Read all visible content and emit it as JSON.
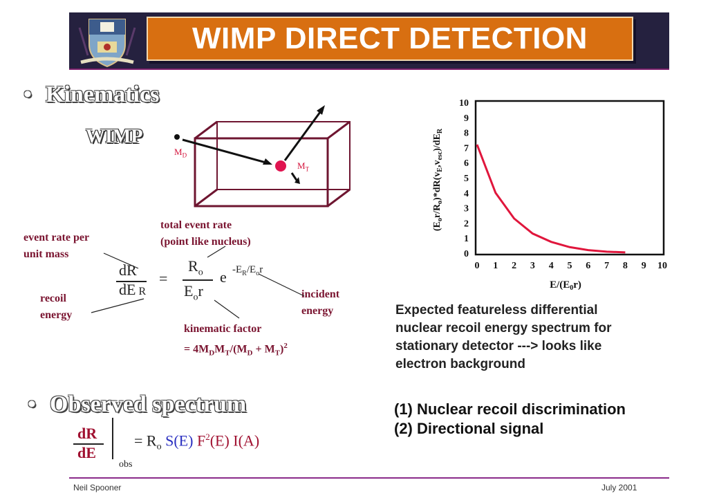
{
  "header": {
    "title": "WIMP DIRECT DETECTION"
  },
  "kinematics": {
    "heading": "Kinematics",
    "wimp_label": "WIMP",
    "md_label": "M",
    "md_sub": "D",
    "mt_label": "M",
    "mt_sub": "T"
  },
  "annotations": {
    "event_rate_1": "event rate per",
    "event_rate_2": "unit mass",
    "total_rate_1": "total event rate",
    "total_rate_2": "(point like nucleus)",
    "recoil_1": "recoil",
    "recoil_2": "energy",
    "incident_1": "incident",
    "incident_2": "energy",
    "kinematic_1": "kinematic factor",
    "kinematic_2": "= 4M",
    "kinematic_d": "D",
    "kinematic_m": "M",
    "kinematic_t": "T",
    "kinematic_3": "/(M",
    "kinematic_d2": "D",
    "kinematic_plus": " + M",
    "kinematic_t2": "T",
    "kinematic_close": ")",
    "kinematic_sq": "2"
  },
  "formula": {
    "dR": "dR",
    "dE": "dE",
    "sub_R": "R",
    "equals": "=",
    "R": "R",
    "o": "o",
    "E": "E",
    "r": "r",
    "e": "e",
    "exp_minus_E": "-E",
    "exp_R": "R",
    "exp_slash_E": "/E",
    "exp_o": "o",
    "exp_r": "r"
  },
  "chart_data": {
    "type": "line",
    "x": [
      0,
      1,
      2,
      3,
      4,
      5,
      6,
      7,
      8
    ],
    "y": [
      7.2,
      4.0,
      2.3,
      1.3,
      0.75,
      0.4,
      0.2,
      0.1,
      0.05
    ],
    "xticks": [
      "0",
      "1",
      "2",
      "3",
      "4",
      "5",
      "6",
      "7",
      "8",
      "9",
      "10"
    ],
    "yticks": [
      "0",
      "1",
      "2",
      "3",
      "4",
      "5",
      "6",
      "7",
      "8",
      "9",
      "10"
    ],
    "xlim": [
      0,
      10
    ],
    "ylim": [
      0,
      10
    ],
    "xlabel": "E/(E₀r)",
    "ylabel": "(Eₒr/Rₒ)*dR(v_E,v_esc)/dE_R",
    "line_color": "#e0163c",
    "grid": false
  },
  "chart_caption": {
    "l1": "Expected featureless differential",
    "l2": "nuclear recoil energy spectrum for",
    "l3": "stationary detector ---> looks like",
    "l4": "electron background"
  },
  "observed": {
    "heading": "Observed spectrum",
    "dR": "dR",
    "dE": "dE",
    "obs": "obs",
    "eq": "=",
    "R": "R",
    "o": "o",
    "S": "S(E)",
    "F": "F",
    "F_sup": "2",
    "F_arg": "(E)",
    "I": "I(A)"
  },
  "list": {
    "item1": "(1) Nuclear recoil discrimination",
    "item2": "(2) Directional signal"
  },
  "footer": {
    "author": "Neil Spooner",
    "date": "July 2001"
  },
  "colors": {
    "banner": "#25213f",
    "title_box": "#d86f11",
    "accent_line": "#7a1e6a",
    "annotation": "#7a1430",
    "curve": "#e0163c"
  }
}
